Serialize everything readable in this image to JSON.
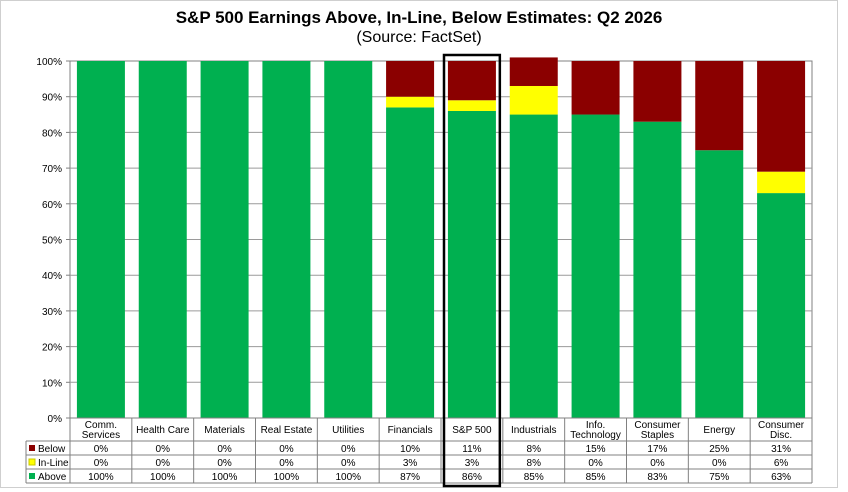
{
  "chart_data": {
    "type": "bar",
    "stacked": true,
    "title": "S&P 500 Earnings Above, In-Line, Below Estimates: Q2 2026",
    "subtitle": "(Source: FactSet)",
    "ylim": [
      0,
      100
    ],
    "yticks": [
      "0%",
      "10%",
      "20%",
      "30%",
      "40%",
      "50%",
      "60%",
      "70%",
      "80%",
      "90%",
      "100%"
    ],
    "categories": [
      [
        "Comm.",
        "Services"
      ],
      [
        "Health Care"
      ],
      [
        "Materials"
      ],
      [
        "Real Estate"
      ],
      [
        "Utilities"
      ],
      [
        "Financials"
      ],
      [
        "S&P 500"
      ],
      [
        "Industrials"
      ],
      [
        "Info.",
        "Technology"
      ],
      [
        "Consumer",
        "Staples"
      ],
      [
        "Energy"
      ],
      [
        "Consumer",
        "Disc."
      ]
    ],
    "highlight_index": 6,
    "series": [
      {
        "name": "Below",
        "color": "#8B0000",
        "values": [
          0,
          0,
          0,
          0,
          0,
          10,
          11,
          8,
          15,
          17,
          25,
          31
        ],
        "labels": [
          "0%",
          "0%",
          "0%",
          "0%",
          "0%",
          "10%",
          "11%",
          "8%",
          "15%",
          "17%",
          "25%",
          "31%"
        ]
      },
      {
        "name": "In-Line",
        "color": "#FFFF00",
        "values": [
          0,
          0,
          0,
          0,
          0,
          3,
          3,
          8,
          0,
          0,
          0,
          6
        ],
        "labels": [
          "0%",
          "0%",
          "0%",
          "0%",
          "0%",
          "3%",
          "3%",
          "8%",
          "0%",
          "0%",
          "0%",
          "6%"
        ]
      },
      {
        "name": "Above",
        "color": "#00B050",
        "values": [
          100,
          100,
          100,
          100,
          100,
          87,
          86,
          85,
          85,
          83,
          75,
          63
        ],
        "labels": [
          "100%",
          "100%",
          "100%",
          "100%",
          "100%",
          "87%",
          "86%",
          "85%",
          "85%",
          "83%",
          "75%",
          "63%"
        ]
      }
    ],
    "grid": true,
    "legend": "table-below"
  }
}
